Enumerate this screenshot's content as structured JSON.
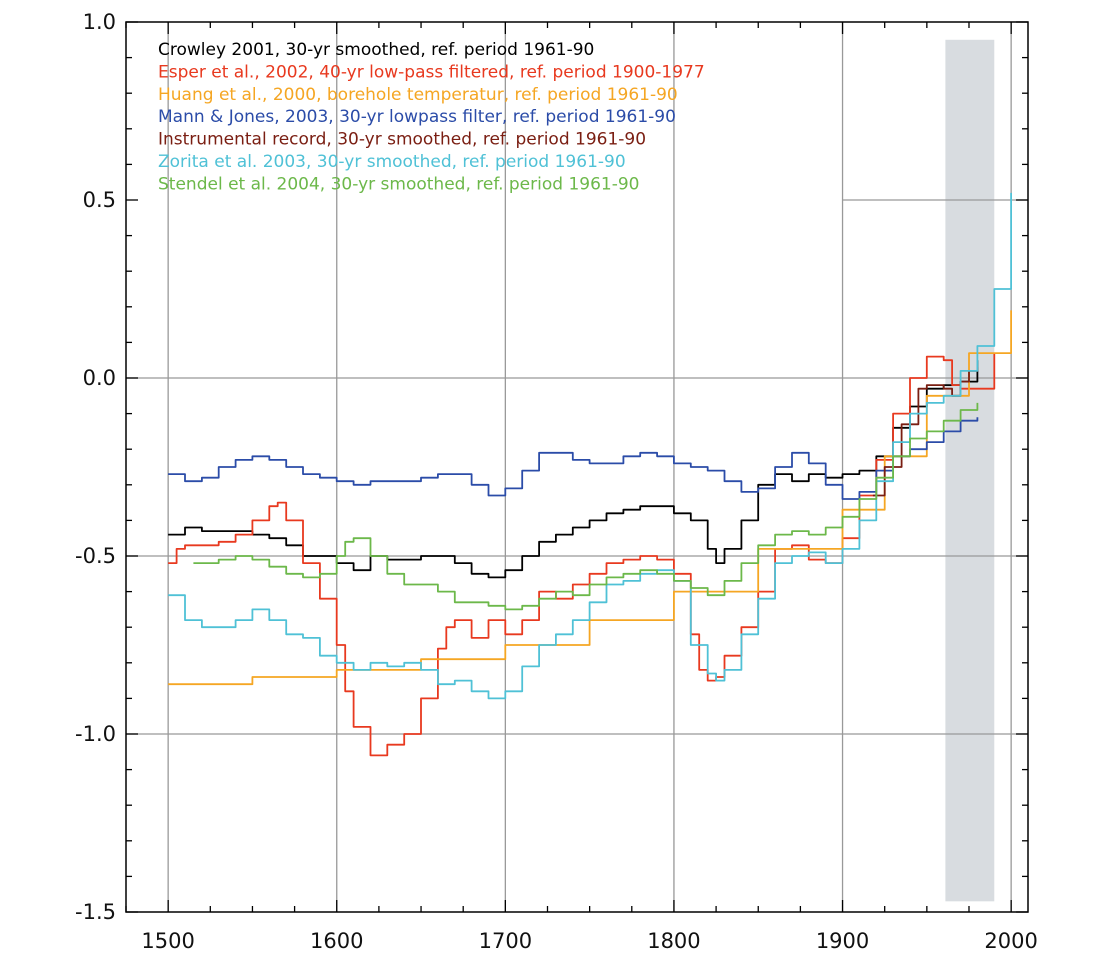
{
  "chart_data": {
    "type": "line",
    "title": "",
    "xlabel": "",
    "ylabel": "",
    "xlim": [
      1475,
      2010
    ],
    "ylim": [
      -1.5,
      1.0
    ],
    "x_ticks": [
      1500,
      1600,
      1700,
      1800,
      1900,
      2000
    ],
    "y_ticks": [
      1.0,
      0.5,
      0.0,
      -0.5,
      -1.0,
      -1.5
    ],
    "x_tick_labels": [
      "1500",
      "1600",
      "1700",
      "1800",
      "1900",
      "2000"
    ],
    "y_tick_labels": [
      "1.0",
      "0.5",
      "0.0",
      "-0.5",
      "-1.0",
      "-1.5"
    ],
    "grid": {
      "vertical": [
        1500,
        1600,
        1700,
        1800,
        1900,
        2000
      ],
      "horizontal": [
        -1.0,
        -0.5,
        0.0
      ],
      "upper_right_horizontal": 0.5,
      "color": "#999999"
    },
    "shaded_region": {
      "x": [
        1961,
        1990
      ],
      "y": [
        -1.47,
        0.95
      ],
      "color": "#d8dce0"
    },
    "legend_position": "top-left",
    "series": [
      {
        "name": "Crowley 2001, 30-yr smoothed, ref. period 1961-90",
        "color": "#000000",
        "x": [
          1500,
          1510,
          1520,
          1530,
          1540,
          1550,
          1560,
          1570,
          1580,
          1590,
          1600,
          1610,
          1620,
          1630,
          1640,
          1650,
          1660,
          1670,
          1680,
          1690,
          1700,
          1710,
          1720,
          1730,
          1740,
          1750,
          1760,
          1770,
          1780,
          1790,
          1800,
          1810,
          1820,
          1825,
          1830,
          1840,
          1850,
          1860,
          1870,
          1880,
          1890,
          1900,
          1910,
          1920,
          1930,
          1940,
          1950,
          1960,
          1970,
          1980
        ],
        "y": [
          -0.44,
          -0.42,
          -0.43,
          -0.43,
          -0.43,
          -0.44,
          -0.45,
          -0.47,
          -0.5,
          -0.5,
          -0.52,
          -0.54,
          -0.5,
          -0.51,
          -0.51,
          -0.5,
          -0.5,
          -0.52,
          -0.55,
          -0.56,
          -0.54,
          -0.5,
          -0.46,
          -0.44,
          -0.42,
          -0.4,
          -0.38,
          -0.37,
          -0.36,
          -0.36,
          -0.38,
          -0.4,
          -0.48,
          -0.52,
          -0.48,
          -0.4,
          -0.3,
          -0.27,
          -0.29,
          -0.27,
          -0.28,
          -0.27,
          -0.26,
          -0.22,
          -0.14,
          -0.08,
          -0.03,
          -0.02,
          -0.01,
          0.05
        ]
      },
      {
        "name": "Esper et al., 2002, 40-yr low-pass filtered, ref. period 1900-1977",
        "color": "#e8391f",
        "x": [
          1500,
          1505,
          1510,
          1520,
          1530,
          1540,
          1550,
          1560,
          1565,
          1570,
          1580,
          1590,
          1600,
          1605,
          1610,
          1620,
          1630,
          1640,
          1650,
          1660,
          1665,
          1670,
          1680,
          1690,
          1700,
          1710,
          1720,
          1730,
          1740,
          1750,
          1760,
          1770,
          1780,
          1790,
          1800,
          1810,
          1815,
          1820,
          1825,
          1830,
          1840,
          1850,
          1860,
          1870,
          1880,
          1890,
          1900,
          1910,
          1920,
          1930,
          1940,
          1950,
          1960,
          1965,
          1970,
          1980,
          1990
        ],
        "y": [
          -0.52,
          -0.48,
          -0.47,
          -0.47,
          -0.46,
          -0.44,
          -0.4,
          -0.36,
          -0.35,
          -0.4,
          -0.52,
          -0.62,
          -0.75,
          -0.88,
          -0.98,
          -1.06,
          -1.03,
          -1.0,
          -0.9,
          -0.76,
          -0.7,
          -0.68,
          -0.73,
          -0.68,
          -0.72,
          -0.68,
          -0.6,
          -0.62,
          -0.58,
          -0.55,
          -0.52,
          -0.51,
          -0.5,
          -0.51,
          -0.55,
          -0.72,
          -0.82,
          -0.85,
          -0.84,
          -0.78,
          -0.7,
          -0.6,
          -0.48,
          -0.47,
          -0.51,
          -0.52,
          -0.45,
          -0.33,
          -0.23,
          -0.1,
          0.0,
          0.06,
          0.05,
          -0.02,
          -0.03,
          -0.03,
          0.07
        ]
      },
      {
        "name": "Huang et al., 2000, borehole temperatur, ref. period 1961-90",
        "color": "#f5a623",
        "x": [
          1500,
          1550,
          1600,
          1650,
          1700,
          1750,
          1800,
          1850,
          1900,
          1925,
          1950,
          1975,
          2000
        ],
        "y": [
          -0.86,
          -0.84,
          -0.82,
          -0.79,
          -0.75,
          -0.68,
          -0.6,
          -0.48,
          -0.37,
          -0.22,
          -0.05,
          0.07,
          0.19
        ]
      },
      {
        "name": "Mann & Jones, 2003, 30-yr lowpass filter, ref. period 1961-90",
        "color": "#2b4ca8",
        "x": [
          1500,
          1510,
          1520,
          1530,
          1540,
          1550,
          1560,
          1570,
          1580,
          1590,
          1600,
          1610,
          1620,
          1630,
          1640,
          1650,
          1660,
          1670,
          1680,
          1690,
          1700,
          1710,
          1720,
          1730,
          1740,
          1750,
          1760,
          1770,
          1780,
          1790,
          1800,
          1810,
          1820,
          1830,
          1840,
          1850,
          1860,
          1870,
          1880,
          1890,
          1900,
          1910,
          1920,
          1930,
          1940,
          1950,
          1960,
          1970,
          1980
        ],
        "y": [
          -0.27,
          -0.29,
          -0.28,
          -0.25,
          -0.23,
          -0.22,
          -0.23,
          -0.25,
          -0.27,
          -0.28,
          -0.29,
          -0.3,
          -0.29,
          -0.29,
          -0.29,
          -0.28,
          -0.27,
          -0.27,
          -0.3,
          -0.33,
          -0.31,
          -0.26,
          -0.21,
          -0.21,
          -0.23,
          -0.24,
          -0.24,
          -0.22,
          -0.21,
          -0.22,
          -0.24,
          -0.25,
          -0.26,
          -0.29,
          -0.32,
          -0.31,
          -0.25,
          -0.21,
          -0.24,
          -0.3,
          -0.34,
          -0.32,
          -0.26,
          -0.22,
          -0.2,
          -0.18,
          -0.15,
          -0.12,
          -0.11
        ]
      },
      {
        "name": "Instrumental record, 30-yr smoothed, ref. period 1961-90",
        "color": "#7a1e12",
        "x": [
          1918,
          1925,
          1935,
          1945,
          1950,
          1960,
          1965,
          1970,
          1975,
          1980
        ],
        "y": [
          -0.33,
          -0.25,
          -0.13,
          -0.03,
          -0.02,
          -0.03,
          -0.05,
          -0.01,
          0.02,
          0.03
        ]
      },
      {
        "name": "Zorita et al. 2003, 30-yr smoothed, ref. period 1961-90",
        "color": "#4fc1d6",
        "x": [
          1500,
          1510,
          1520,
          1530,
          1540,
          1550,
          1560,
          1570,
          1580,
          1590,
          1600,
          1610,
          1620,
          1630,
          1640,
          1650,
          1660,
          1670,
          1680,
          1690,
          1700,
          1710,
          1720,
          1730,
          1740,
          1750,
          1760,
          1770,
          1780,
          1790,
          1800,
          1810,
          1820,
          1825,
          1830,
          1840,
          1850,
          1860,
          1870,
          1880,
          1890,
          1900,
          1910,
          1920,
          1930,
          1940,
          1950,
          1960,
          1970,
          1980,
          1990,
          2000
        ],
        "y": [
          -0.61,
          -0.68,
          -0.7,
          -0.7,
          -0.68,
          -0.65,
          -0.68,
          -0.72,
          -0.73,
          -0.78,
          -0.8,
          -0.82,
          -0.8,
          -0.81,
          -0.8,
          -0.82,
          -0.86,
          -0.85,
          -0.88,
          -0.9,
          -0.88,
          -0.81,
          -0.75,
          -0.72,
          -0.68,
          -0.63,
          -0.58,
          -0.57,
          -0.55,
          -0.54,
          -0.57,
          -0.75,
          -0.83,
          -0.85,
          -0.82,
          -0.72,
          -0.62,
          -0.52,
          -0.5,
          -0.49,
          -0.52,
          -0.48,
          -0.4,
          -0.29,
          -0.18,
          -0.1,
          -0.07,
          -0.05,
          0.02,
          0.09,
          0.25,
          0.52
        ]
      },
      {
        "name": "Stendel et al. 2004, 30-yr smoothed, ref. period 1961-90",
        "color": "#6cb84a",
        "x": [
          1515,
          1530,
          1540,
          1550,
          1560,
          1570,
          1580,
          1590,
          1600,
          1605,
          1610,
          1620,
          1630,
          1640,
          1650,
          1660,
          1670,
          1680,
          1690,
          1700,
          1710,
          1720,
          1730,
          1740,
          1750,
          1760,
          1770,
          1780,
          1790,
          1800,
          1810,
          1820,
          1830,
          1840,
          1850,
          1860,
          1870,
          1880,
          1890,
          1900,
          1910,
          1920,
          1930,
          1940,
          1950,
          1960,
          1970,
          1980
        ],
        "y": [
          -0.52,
          -0.51,
          -0.5,
          -0.51,
          -0.53,
          -0.55,
          -0.56,
          -0.55,
          -0.5,
          -0.46,
          -0.45,
          -0.5,
          -0.55,
          -0.58,
          -0.58,
          -0.6,
          -0.63,
          -0.63,
          -0.64,
          -0.65,
          -0.64,
          -0.62,
          -0.6,
          -0.61,
          -0.58,
          -0.56,
          -0.55,
          -0.54,
          -0.55,
          -0.57,
          -0.59,
          -0.61,
          -0.57,
          -0.52,
          -0.47,
          -0.44,
          -0.43,
          -0.44,
          -0.42,
          -0.39,
          -0.34,
          -0.28,
          -0.22,
          -0.17,
          -0.15,
          -0.12,
          -0.09,
          -0.07
        ]
      }
    ]
  }
}
